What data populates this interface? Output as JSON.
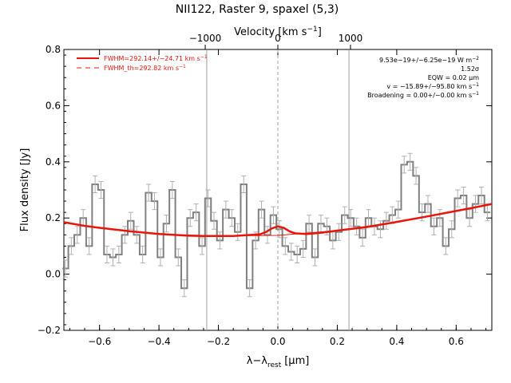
{
  "chart_data": {
    "type": "line",
    "title": "NII122, Raster 9, spaxel (5,3)",
    "xlabel": "λ−λ",
    "xlabel_sub": "rest",
    "xlabel_unit": "[μm]",
    "ylabel": "Flux density [Jy]",
    "top_xlabel": "Velocity [km s",
    "top_xlabel_sup": "−1",
    "top_xlabel_end": "]",
    "xlim": [
      -0.72,
      0.72
    ],
    "ylim": [
      -0.2,
      0.8
    ],
    "x_ticks": [
      -0.6,
      -0.4,
      -0.2,
      0.0,
      0.2,
      0.4,
      0.6
    ],
    "x_tick_labels": [
      "−0.6",
      "−0.4",
      "−0.2",
      "0.0",
      "0.2",
      "0.4",
      "0.6"
    ],
    "y_ticks": [
      -0.2,
      0.0,
      0.2,
      0.4,
      0.6,
      0.8
    ],
    "y_tick_labels": [
      "−0.2",
      "0.0",
      "0.2",
      "0.4",
      "0.6",
      "0.8"
    ],
    "top_ticks_lambda": [
      -0.2444,
      0.0,
      0.2444
    ],
    "top_tick_labels": [
      "−1000",
      "0",
      "1000"
    ],
    "vlines": [
      -0.2393,
      0.2393
    ],
    "center_line": 0.0,
    "legend_position": "top-left",
    "legend": [
      {
        "label": "FWHM=292.14+/−24.71 km s",
        "sup": "−1",
        "style": "solid"
      },
      {
        "label": "FWHM_th=292.82 km s",
        "sup": "−1",
        "style": "dashed"
      }
    ],
    "annotations": [
      {
        "text": "9.53e−19+/−6.25e−19 W m",
        "sup": "−2"
      },
      {
        "text": "1.52σ",
        "sup": ""
      },
      {
        "text": "EQW = 0.02 μm",
        "sup": ""
      },
      {
        "text": "v = −15.89+/−95.80 km s",
        "sup": "−1"
      },
      {
        "text": "Broadening = 0.00+/−0.00 km s",
        "sup": "−1"
      }
    ],
    "colors": {
      "data": "#808080",
      "errorbar": "#b0b0b0",
      "fit": "#e8150b",
      "vline": "#a0a0a0"
    },
    "series": [
      {
        "kind": "step",
        "x": [
          -0.715,
          -0.695,
          -0.675,
          -0.655,
          -0.635,
          -0.615,
          -0.595,
          -0.575,
          -0.555,
          -0.535,
          -0.515,
          -0.495,
          -0.475,
          -0.455,
          -0.435,
          -0.415,
          -0.395,
          -0.375,
          -0.355,
          -0.335,
          -0.315,
          -0.295,
          -0.275,
          -0.255,
          -0.235,
          -0.215,
          -0.195,
          -0.175,
          -0.155,
          -0.135,
          -0.115,
          -0.095,
          -0.075,
          -0.055,
          -0.035,
          -0.015,
          0.005,
          0.025,
          0.045,
          0.065,
          0.085,
          0.105,
          0.125,
          0.145,
          0.165,
          0.185,
          0.205,
          0.225,
          0.245,
          0.265,
          0.285,
          0.305,
          0.325,
          0.345,
          0.365,
          0.385,
          0.405,
          0.425,
          0.445,
          0.465,
          0.485,
          0.505,
          0.525,
          0.545,
          0.565,
          0.585,
          0.605,
          0.625,
          0.645,
          0.665,
          0.685,
          0.705
        ],
        "values": [
          0.02,
          0.1,
          0.14,
          0.2,
          0.1,
          0.32,
          0.3,
          0.07,
          0.06,
          0.07,
          0.14,
          0.19,
          0.14,
          0.07,
          0.29,
          0.26,
          0.06,
          0.18,
          0.3,
          0.06,
          -0.05,
          0.2,
          0.22,
          0.1,
          0.27,
          0.19,
          0.12,
          0.23,
          0.2,
          0.15,
          0.32,
          -0.05,
          0.12,
          0.23,
          0.14,
          0.21,
          0.16,
          0.1,
          0.08,
          0.07,
          0.09,
          0.18,
          0.06,
          0.18,
          0.17,
          0.12,
          0.15,
          0.21,
          0.2,
          0.17,
          0.13,
          0.2,
          0.17,
          0.16,
          0.19,
          0.21,
          0.23,
          0.39,
          0.4,
          0.35,
          0.22,
          0.25,
          0.17,
          0.2,
          0.1,
          0.16,
          0.27,
          0.28,
          0.2,
          0.25,
          0.28,
          0.22
        ],
        "errors": [
          0.03,
          0.03,
          0.03,
          0.03,
          0.03,
          0.03,
          0.03,
          0.03,
          0.03,
          0.03,
          0.03,
          0.03,
          0.03,
          0.03,
          0.03,
          0.03,
          0.03,
          0.03,
          0.03,
          0.03,
          0.03,
          0.03,
          0.03,
          0.03,
          0.03,
          0.03,
          0.03,
          0.03,
          0.03,
          0.03,
          0.03,
          0.03,
          0.03,
          0.03,
          0.03,
          0.03,
          0.03,
          0.03,
          0.03,
          0.03,
          0.03,
          0.03,
          0.03,
          0.03,
          0.03,
          0.03,
          0.03,
          0.03,
          0.03,
          0.03,
          0.03,
          0.03,
          0.03,
          0.03,
          0.03,
          0.03,
          0.03,
          0.03,
          0.03,
          0.03,
          0.03,
          0.03,
          0.03,
          0.03,
          0.03,
          0.03,
          0.03,
          0.03,
          0.03,
          0.03,
          0.03,
          0.03
        ]
      },
      {
        "kind": "fit",
        "x": [
          -0.72,
          -0.65,
          -0.6,
          -0.5,
          -0.4,
          -0.3,
          -0.25,
          -0.2,
          -0.15,
          -0.1,
          -0.06,
          -0.04,
          -0.02,
          0.0,
          0.02,
          0.04,
          0.06,
          0.1,
          0.15,
          0.2,
          0.3,
          0.4,
          0.5,
          0.6,
          0.65,
          0.72
        ],
        "values": [
          0.185,
          0.172,
          0.165,
          0.153,
          0.143,
          0.137,
          0.136,
          0.136,
          0.136,
          0.139,
          0.142,
          0.15,
          0.163,
          0.17,
          0.165,
          0.152,
          0.145,
          0.143,
          0.148,
          0.155,
          0.168,
          0.186,
          0.205,
          0.225,
          0.235,
          0.25
        ]
      },
      {
        "kind": "fit_baseline",
        "x": [
          -0.72,
          -0.6,
          -0.4,
          -0.2,
          0.0,
          0.2,
          0.4,
          0.6,
          0.72
        ],
        "values": [
          0.185,
          0.165,
          0.143,
          0.136,
          0.138,
          0.155,
          0.186,
          0.225,
          0.25
        ]
      }
    ]
  }
}
